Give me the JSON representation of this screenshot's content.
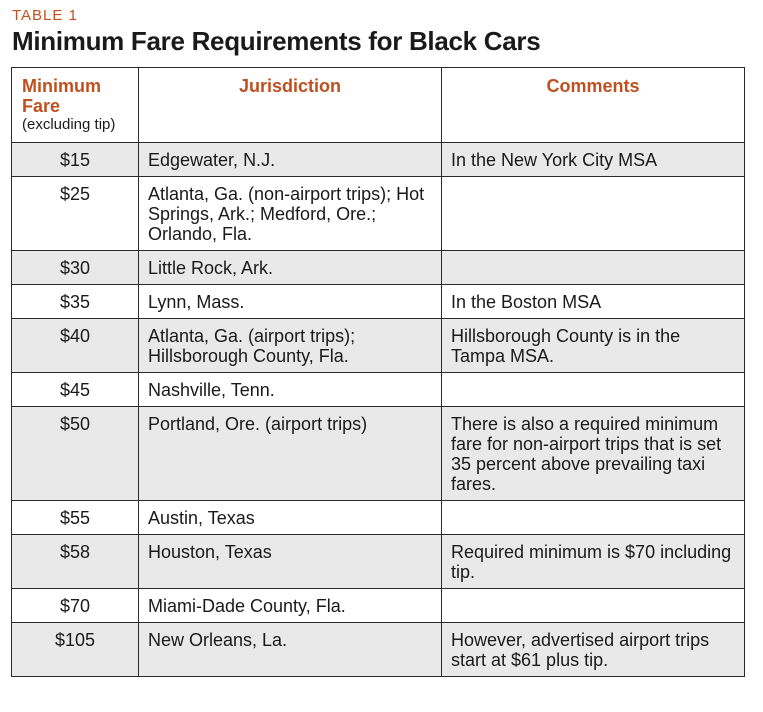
{
  "table_label": "TABLE 1",
  "title": "Minimum Fare Requirements for Black Cars",
  "headers": {
    "fare": "Minimum Fare",
    "fare_sub": "(excluding tip)",
    "jurisdiction": "Jurisdiction",
    "comments": "Comments"
  },
  "rows": [
    {
      "fare": "$15",
      "jurisdiction": "Edgewater, N.J.",
      "comment": "In the New York City MSA"
    },
    {
      "fare": "$25",
      "jurisdiction": "Atlanta, Ga. (non-airport trips); Hot Springs, Ark.; Medford, Ore.; Orlando, Fla.",
      "comment": ""
    },
    {
      "fare": "$30",
      "jurisdiction": "Little Rock, Ark.",
      "comment": ""
    },
    {
      "fare": "$35",
      "jurisdiction": "Lynn, Mass.",
      "comment": "In the Boston MSA"
    },
    {
      "fare": "$40",
      "jurisdiction": "Atlanta, Ga. (airport trips); Hillsborough County, Fla.",
      "comment": "Hillsborough County is in the Tampa MSA."
    },
    {
      "fare": "$45",
      "jurisdiction": "Nashville, Tenn.",
      "comment": ""
    },
    {
      "fare": "$50",
      "jurisdiction": "Portland, Ore. (airport trips)",
      "comment": "There is also a required minimum fare for non-airport trips that is set 35 percent above prevailing taxi fares."
    },
    {
      "fare": "$55",
      "jurisdiction": "Austin, Texas",
      "comment": ""
    },
    {
      "fare": "$58",
      "jurisdiction": "Houston, Texas",
      "comment": "Required minimum is $70 including tip."
    },
    {
      "fare": "$70",
      "jurisdiction": "Miami-Dade County, Fla.",
      "comment": ""
    },
    {
      "fare": "$105",
      "jurisdiction": "New Orleans, La.",
      "comment": "However, advertised airport trips start at $61 plus tip."
    }
  ]
}
